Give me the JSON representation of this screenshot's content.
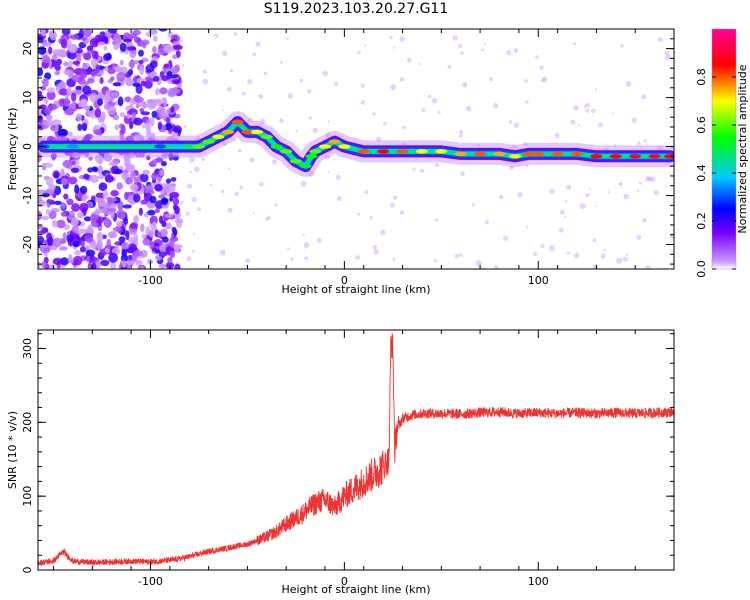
{
  "figure": {
    "title": "S119.2023.103.20.27.G11"
  },
  "chart_data": [
    {
      "type": "heatmap",
      "title": "",
      "xlabel": "Height of straight line (km)",
      "ylabel": "Frequency (Hz)",
      "xlim": [
        -158,
        170
      ],
      "ylim": [
        -25,
        24
      ],
      "xticks": [
        -100,
        0,
        100
      ],
      "yticks": [
        -20,
        -10,
        0,
        10,
        20
      ],
      "colorbar": {
        "label": "Normalized spectral amplitude",
        "ticks": [
          "0.0",
          "0.2",
          "0.4",
          "0.6",
          "0.8"
        ],
        "range": [
          0,
          1
        ],
        "colors": [
          "#e8ccff",
          "#7a00ff",
          "#0000ff",
          "#00c8ff",
          "#00ff00",
          "#ffff00",
          "#ff0000",
          "#ff0099"
        ]
      },
      "ridge": {
        "x": [
          -155,
          -145,
          -140,
          -95,
          -85,
          -80,
          -75,
          -70,
          -65,
          -60,
          -55,
          -50,
          -45,
          -40,
          -35,
          -30,
          -25,
          -20,
          -17,
          -15,
          -10,
          -5,
          0,
          10,
          20,
          30,
          40,
          50,
          60,
          70,
          80,
          88,
          95,
          100,
          110,
          120,
          130,
          140,
          150,
          160,
          168
        ],
        "y": [
          0,
          0,
          0,
          0,
          0,
          0,
          0,
          1,
          2,
          3,
          5,
          3,
          3,
          2,
          0,
          -1,
          -3,
          -4,
          -2,
          -1,
          0,
          1,
          0,
          -1,
          -1,
          -1,
          -1,
          -1,
          -1.5,
          -1.5,
          -1.5,
          -2,
          -1.5,
          -1.5,
          -1.5,
          -1.5,
          -2,
          -2,
          -2,
          -2,
          -2
        ],
        "amplitude": [
          0.3,
          0.45,
          0.35,
          0.3,
          0.4,
          0.5,
          0.6,
          0.6,
          0.7,
          0.75,
          0.8,
          0.8,
          0.7,
          0.6,
          0.55,
          0.6,
          0.6,
          0.5,
          0.55,
          0.6,
          0.7,
          0.75,
          0.7,
          0.8,
          0.85,
          0.8,
          0.7,
          0.7,
          0.75,
          0.8,
          0.75,
          0.7,
          0.8,
          0.8,
          0.8,
          0.8,
          0.85,
          0.85,
          0.9,
          0.9,
          0.85
        ]
      },
      "noise_region_x": [
        -158,
        -85
      ]
    },
    {
      "type": "line",
      "title": "",
      "xlabel": "Height of straight line (km)",
      "ylabel": "SNR (10 * v/v)",
      "xlim": [
        -158,
        170
      ],
      "ylim": [
        0,
        325
      ],
      "xticks": [
        -100,
        0,
        100
      ],
      "yticks": [
        0,
        100,
        200,
        300
      ],
      "color": "#ee3333",
      "series": [
        {
          "x": [
            -158,
            -150,
            -145,
            -140,
            -130,
            -120,
            -110,
            -100,
            -90,
            -80,
            -70,
            -60,
            -50,
            -40,
            -35,
            -30,
            -25,
            -20,
            -15,
            -10,
            -5,
            0,
            5,
            10,
            15,
            20,
            23,
            24,
            25,
            26,
            27,
            30,
            35,
            40,
            50,
            60,
            70,
            80,
            90,
            100,
            110,
            120,
            130,
            140,
            150,
            160,
            170
          ],
          "y": [
            10,
            12,
            25,
            12,
            10,
            11,
            12,
            11,
            13,
            18,
            25,
            30,
            35,
            45,
            52,
            62,
            70,
            80,
            90,
            95,
            85,
            100,
            110,
            120,
            130,
            140,
            150,
            310,
            300,
            160,
            190,
            205,
            210,
            212,
            212,
            211,
            213,
            214,
            212,
            213,
            212,
            213,
            212,
            213,
            212,
            213,
            214
          ]
        }
      ]
    }
  ]
}
